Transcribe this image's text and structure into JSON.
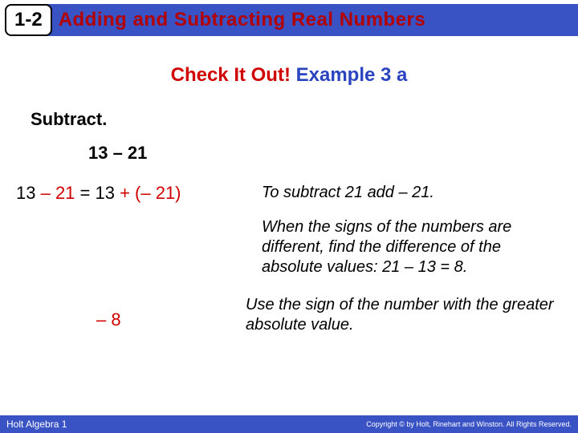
{
  "header": {
    "lesson_number": "1-2",
    "title": "Adding and Subtracting Real Numbers",
    "bar_color": "#3a53c4",
    "title_color": "#b30000"
  },
  "subtitle": {
    "part1": "Check It Out!",
    "part2": " Example 3 a",
    "color1": "#d10000",
    "color2": "#2a44c0"
  },
  "instruction": "Subtract.",
  "problem": "13 – 21",
  "equation": {
    "lhs_black1": "13 ",
    "lhs_red": "– 21",
    "eq": " = 13 ",
    "rhs_red": "+ (– 21)"
  },
  "explanations": {
    "line1": "To subtract 21 add – 21.",
    "line2": "When the signs of the numbers are different, find the difference of the absolute values: 21 – 13 = 8.",
    "line3": "Use the sign of the number with the greater absolute value."
  },
  "answer": "– 8",
  "footer": {
    "left": "Holt Algebra 1",
    "right": "Copyright © by Holt, Rinehart and Winston. All Rights Reserved."
  }
}
